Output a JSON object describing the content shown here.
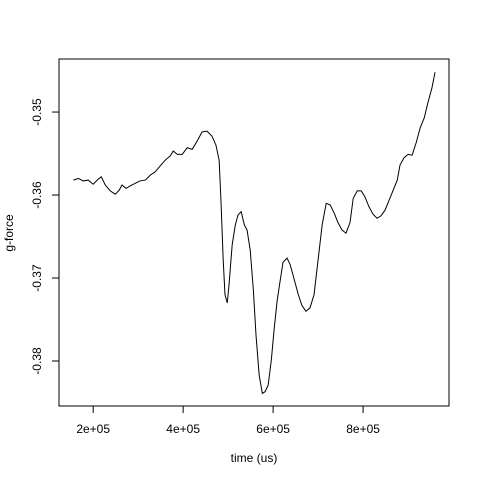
{
  "chart_data": {
    "type": "line",
    "x_label": "time (us)",
    "y_label": "g-force",
    "color": "#000000",
    "x": [
      156000,
      167000,
      178000,
      189000,
      200000,
      211000,
      218000,
      227000,
      238000,
      249000,
      258000,
      264000,
      273000,
      282000,
      293000,
      304000,
      316000,
      327000,
      338000,
      349000,
      360000,
      371000,
      378000,
      387000,
      398000,
      409000,
      420000,
      431000,
      442000,
      453000,
      464000,
      473000,
      480000,
      484000,
      489000,
      493000,
      498000,
      502000,
      509000,
      516000,
      522000,
      529000,
      536000,
      542000,
      549000,
      556000,
      562000,
      569000,
      576000,
      582000,
      589000,
      596000,
      602000,
      609000,
      616000,
      622000,
      631000,
      638000,
      647000,
      656000,
      664000,
      673000,
      682000,
      691000,
      700000,
      709000,
      718000,
      727000,
      736000,
      744000,
      753000,
      762000,
      771000,
      778000,
      787000,
      796000,
      804000,
      813000,
      822000,
      831000,
      840000,
      849000,
      858000,
      867000,
      876000,
      882000,
      891000,
      900000,
      909000,
      918000,
      927000,
      936000,
      944000,
      953000,
      960000
    ],
    "values": [
      -0.3582,
      -0.358,
      -0.3583,
      -0.3582,
      -0.3587,
      -0.3581,
      -0.3578,
      -0.3588,
      -0.3595,
      -0.3599,
      -0.3594,
      -0.3588,
      -0.3592,
      -0.3589,
      -0.3586,
      -0.3583,
      -0.3582,
      -0.3576,
      -0.3572,
      -0.3565,
      -0.3558,
      -0.3553,
      -0.3547,
      -0.3551,
      -0.3551,
      -0.3543,
      -0.3545,
      -0.3535,
      -0.3524,
      -0.3523,
      -0.3529,
      -0.354,
      -0.3558,
      -0.3606,
      -0.3678,
      -0.372,
      -0.373,
      -0.3708,
      -0.366,
      -0.3636,
      -0.3624,
      -0.362,
      -0.3636,
      -0.3642,
      -0.3666,
      -0.3714,
      -0.3769,
      -0.3817,
      -0.3839,
      -0.3837,
      -0.3829,
      -0.3799,
      -0.3763,
      -0.3727,
      -0.3702,
      -0.3681,
      -0.3676,
      -0.3684,
      -0.3702,
      -0.372,
      -0.3733,
      -0.374,
      -0.3736,
      -0.372,
      -0.3678,
      -0.3636,
      -0.361,
      -0.3612,
      -0.3622,
      -0.3633,
      -0.3642,
      -0.3646,
      -0.3633,
      -0.3604,
      -0.3595,
      -0.3595,
      -0.3602,
      -0.3614,
      -0.3623,
      -0.3628,
      -0.3625,
      -0.3618,
      -0.3606,
      -0.3594,
      -0.3582,
      -0.3564,
      -0.3555,
      -0.3551,
      -0.3552,
      -0.3537,
      -0.3519,
      -0.3507,
      -0.3489,
      -0.3471,
      -0.3452
    ],
    "xlim": [
      124000,
      991000
    ],
    "xticks": [
      {
        "value": 200000,
        "label": "2e+05"
      },
      {
        "value": 400000,
        "label": "4e+05"
      },
      {
        "value": 600000,
        "label": "6e+05"
      },
      {
        "value": 800000,
        "label": "8e+05"
      }
    ],
    "ylim": [
      -0.38542,
      -0.34361
    ],
    "yticks": [
      -0.38,
      -0.37,
      -0.36,
      -0.35
    ]
  }
}
